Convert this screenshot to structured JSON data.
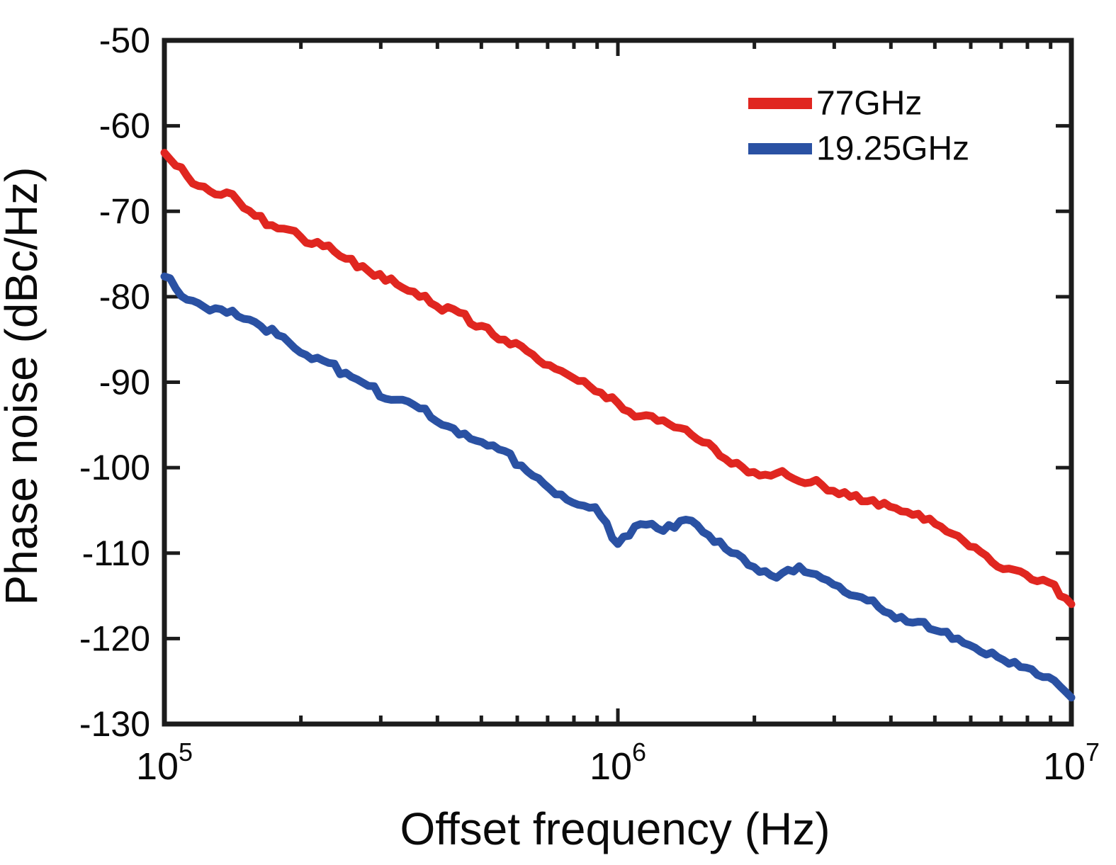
{
  "chart_data": {
    "type": "line",
    "title": "",
    "xlabel": "Offset frequency (Hz)",
    "ylabel": "Phase noise (dBc/Hz)",
    "x_scale": "log10",
    "x_log10_range": [
      5,
      7
    ],
    "x_tick_exponents": [
      5,
      6,
      7
    ],
    "ylim": [
      -130,
      -50
    ],
    "y_ticks": [
      -50,
      -60,
      -70,
      -80,
      -90,
      -100,
      -110,
      -120,
      -130
    ],
    "grid": false,
    "legend_position": "top-right-inside",
    "axis_color": "#1c1c1c",
    "series": [
      {
        "name": "77GHz",
        "color": "#e02620",
        "x_log10": [
          5,
          5.05,
          5.1,
          5.15,
          5.2,
          5.25,
          5.3,
          5.35,
          5.4,
          5.45,
          5.5,
          5.55,
          5.6,
          5.65,
          5.7,
          5.75,
          5.8,
          5.85,
          5.9,
          5.95,
          6,
          6.05,
          6.1,
          6.15,
          6.2,
          6.25,
          6.3,
          6.35,
          6.4,
          6.45,
          6.5,
          6.55,
          6.6,
          6.65,
          6.7,
          6.75,
          6.8,
          6.85,
          6.9,
          6.95,
          7
        ],
        "values": [
          -63,
          -66,
          -67.5,
          -68,
          -70.5,
          -72,
          -73,
          -74,
          -75.5,
          -77,
          -78,
          -79.5,
          -81,
          -82,
          -83.5,
          -85,
          -86.5,
          -88,
          -89.5,
          -91,
          -92.5,
          -94,
          -94.5,
          -95.5,
          -97,
          -99.5,
          -100.5,
          -100.5,
          -101.5,
          -102,
          -103,
          -104,
          -104.5,
          -105.5,
          -106.5,
          -108,
          -110,
          -112,
          -112.5,
          -113.5,
          -116
        ]
      },
      {
        "name": "19.25GHz",
        "color": "#2a51a3",
        "x_log10": [
          5,
          5.05,
          5.1,
          5.15,
          5.2,
          5.25,
          5.3,
          5.35,
          5.4,
          5.45,
          5.5,
          5.55,
          5.6,
          5.65,
          5.7,
          5.75,
          5.8,
          5.85,
          5.9,
          5.95,
          6,
          6.05,
          6.1,
          6.15,
          6.2,
          6.25,
          6.3,
          6.35,
          6.4,
          6.45,
          6.5,
          6.55,
          6.6,
          6.65,
          6.7,
          6.75,
          6.8,
          6.85,
          6.9,
          6.95,
          7
        ],
        "values": [
          -77.5,
          -80.5,
          -81.5,
          -81.5,
          -83,
          -84.5,
          -86.5,
          -87.5,
          -89,
          -90.5,
          -92,
          -92.5,
          -94.5,
          -96,
          -97,
          -98,
          -100.5,
          -102.5,
          -104,
          -104.5,
          -109,
          -106.5,
          -107.5,
          -106,
          -108,
          -110,
          -111.5,
          -113,
          -111.5,
          -113,
          -114.5,
          -115.5,
          -117,
          -118,
          -119,
          -120,
          -121.5,
          -122.5,
          -123.5,
          -124.5,
          -127
        ]
      }
    ]
  }
}
